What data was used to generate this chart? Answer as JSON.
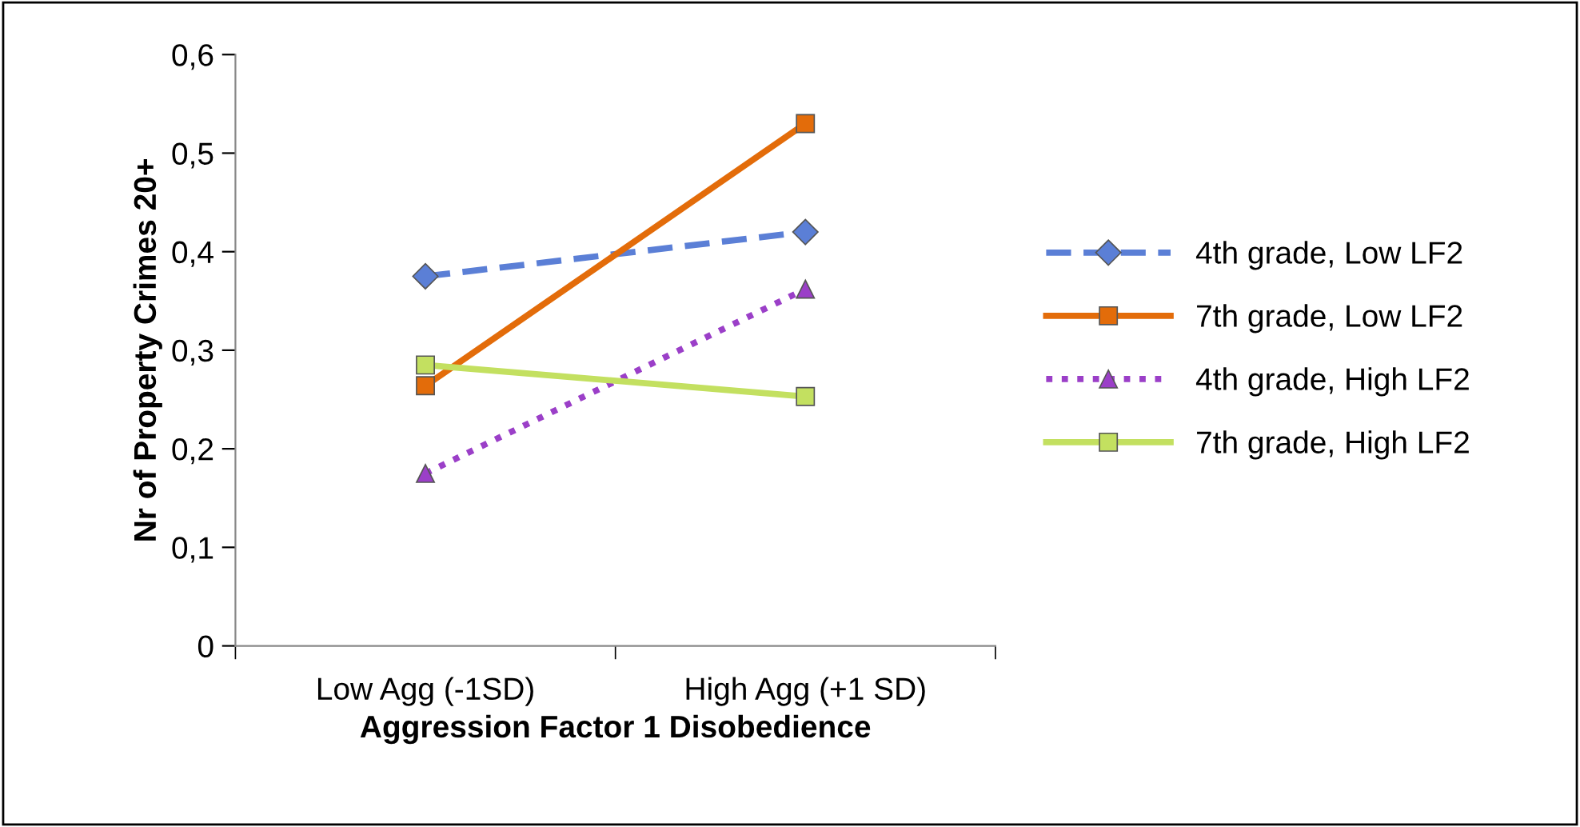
{
  "chart_data": {
    "type": "line",
    "xlabel": "Aggression Factor 1 Disobedience",
    "ylabel": "Nr of Property Crimes 20+",
    "categories": [
      "Low Agg (-1SD)",
      "High Agg (+1 SD)"
    ],
    "series": [
      {
        "name": "4th grade, Low LF2",
        "color": "#5b7fd6",
        "values": [
          0.375,
          0.42
        ],
        "marker": "diamond",
        "line_style": "dashed"
      },
      {
        "name": "7th grade, Low LF2",
        "color": "#e36c0a",
        "values": [
          0.264,
          0.53
        ],
        "marker": "square",
        "line_style": "solid"
      },
      {
        "name": "4th grade, High LF2",
        "color": "#9b3fc8",
        "values": [
          0.175,
          0.362
        ],
        "marker": "triangle",
        "line_style": "dotted"
      },
      {
        "name": "7th grade, High LF2",
        "color": "#c3e060",
        "values": [
          0.285,
          0.253
        ],
        "marker": "square",
        "line_style": "solid"
      }
    ],
    "ylim": [
      0,
      0.6
    ],
    "yticks": [
      0,
      {
        "value": 0.1,
        "label": "0,1"
      },
      {
        "value": 0.2,
        "label": "0,2"
      },
      {
        "value": 0.3,
        "label": "0,3"
      },
      {
        "value": 0.4,
        "label": "0,4"
      },
      {
        "value": 0.5,
        "label": "0,5"
      },
      {
        "value": 0.6,
        "label": "0,6"
      }
    ],
    "grid": false,
    "legend": "right"
  }
}
